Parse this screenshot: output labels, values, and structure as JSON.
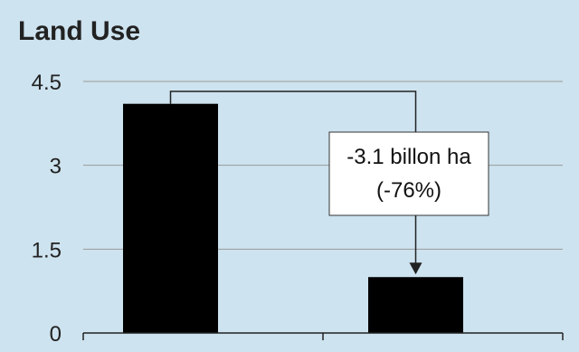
{
  "chart_data": {
    "type": "bar",
    "title": "Land Use",
    "xlabel": "",
    "ylabel": "",
    "categories": [
      "",
      ""
    ],
    "values": [
      4.1,
      1.0
    ],
    "ylim": [
      0,
      4.5
    ],
    "yticks": [
      "0",
      "1.5",
      "3",
      "4.5"
    ],
    "ytick_values": [
      0,
      1.5,
      3,
      4.5
    ],
    "grid": true,
    "annotation": {
      "line1": "-3.1 billon ha",
      "line2": "(-76%)",
      "from_category": 0,
      "to_category": 1
    },
    "colors": {
      "background": "#cde3ef",
      "bar": "#000000",
      "grid": "#9a9a9a",
      "axis": "#222222"
    }
  }
}
